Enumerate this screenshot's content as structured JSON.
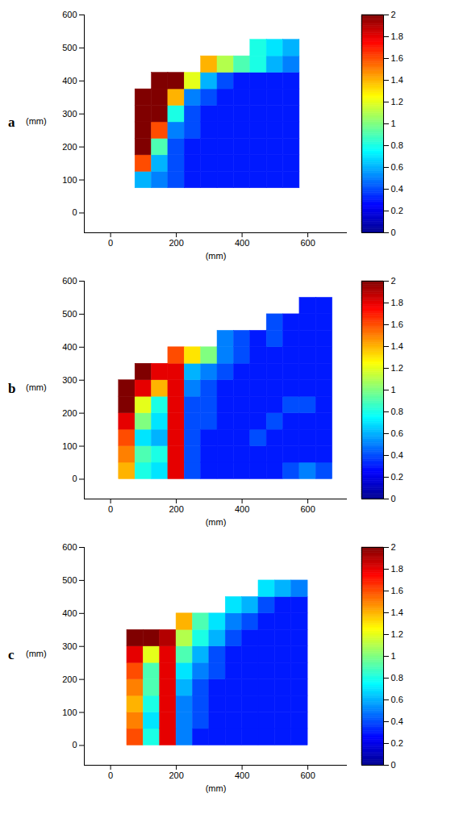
{
  "chart_data": [
    {
      "type": "heatmap",
      "panel_label": "a",
      "x_label": "(mm)",
      "y_label": "(mm)",
      "xlim": [
        -80,
        720
      ],
      "ylim": [
        -60,
        600
      ],
      "xticks": [
        0,
        200,
        400,
        600
      ],
      "yticks": [
        0,
        100,
        200,
        300,
        400,
        500,
        600
      ],
      "x_edges": [
        75,
        125,
        175,
        225,
        275,
        325,
        375,
        425,
        475,
        525,
        575
      ],
      "y_edges": [
        75,
        125,
        175,
        225,
        275,
        325,
        375,
        425,
        475,
        525
      ],
      "values": [
        [
          0.6,
          0.5,
          0.4,
          0.3,
          0.3,
          0.3,
          0.3,
          0.3,
          0.3,
          0.3
        ],
        [
          1.6,
          0.6,
          0.4,
          0.3,
          0.3,
          0.3,
          0.3,
          0.3,
          0.3,
          0.3
        ],
        [
          2,
          0.9,
          0.4,
          0.3,
          0.3,
          0.3,
          0.3,
          0.3,
          0.3,
          0.3
        ],
        [
          2,
          1.6,
          0.5,
          0.4,
          0.3,
          0.3,
          0.3,
          0.3,
          0.3,
          0.3
        ],
        [
          2,
          2,
          0.8,
          0.4,
          0.3,
          0.3,
          0.3,
          0.3,
          0.3,
          0.3
        ],
        [
          2,
          2,
          1.4,
          0.5,
          0.4,
          0.3,
          0.3,
          0.3,
          0.3,
          0.3
        ],
        [
          null,
          2,
          2,
          1.2,
          0.6,
          0.4,
          0.3,
          0.3,
          0.3,
          0.3
        ],
        [
          null,
          null,
          null,
          null,
          1.4,
          1.1,
          0.9,
          0.8,
          0.6,
          0.5
        ],
        [
          null,
          null,
          null,
          null,
          null,
          null,
          null,
          0.8,
          0.7,
          0.6
        ]
      ],
      "color_range": [
        0,
        2
      ],
      "color_ticks": [
        0,
        0.2,
        0.4,
        0.6,
        0.8,
        1,
        1.2,
        1.4,
        1.6,
        1.8,
        2
      ]
    },
    {
      "type": "heatmap",
      "panel_label": "b",
      "x_label": "(mm)",
      "y_label": "(mm)",
      "xlim": [
        -80,
        720
      ],
      "ylim": [
        -60,
        600
      ],
      "xticks": [
        0,
        200,
        400,
        600
      ],
      "yticks": [
        0,
        100,
        200,
        300,
        400,
        500,
        600
      ],
      "x_edges": [
        25,
        75,
        125,
        175,
        225,
        275,
        325,
        375,
        425,
        475,
        525,
        575,
        625,
        675
      ],
      "y_edges": [
        0,
        50,
        100,
        150,
        200,
        250,
        300,
        350,
        400,
        450,
        500,
        550
      ],
      "values": [
        [
          1.4,
          0.8,
          0.7,
          1.8,
          0.4,
          0.3,
          0.3,
          0.3,
          0.3,
          0.3,
          0.4,
          0.5,
          0.4
        ],
        [
          1.5,
          0.9,
          0.8,
          1.8,
          0.4,
          0.3,
          0.3,
          0.3,
          0.3,
          0.3,
          0.3,
          0.3,
          0.3
        ],
        [
          1.6,
          0.7,
          0.6,
          1.8,
          0.4,
          0.3,
          0.3,
          0.3,
          0.4,
          0.3,
          0.3,
          0.3,
          0.3
        ],
        [
          1.8,
          1.0,
          0.7,
          1.8,
          0.4,
          0.4,
          0.3,
          0.3,
          0.3,
          0.4,
          0.3,
          0.3,
          0.3
        ],
        [
          2,
          1.2,
          0.8,
          1.8,
          0.4,
          0.4,
          0.3,
          0.3,
          0.3,
          0.3,
          0.4,
          0.4,
          0.3
        ],
        [
          2,
          1.8,
          1.4,
          1.8,
          0.5,
          0.4,
          0.3,
          0.3,
          0.3,
          0.3,
          0.3,
          0.3,
          0.3
        ],
        [
          null,
          2,
          1.8,
          1.8,
          0.6,
          0.5,
          0.4,
          0.3,
          0.3,
          0.3,
          0.3,
          0.3,
          0.3
        ],
        [
          null,
          null,
          null,
          1.6,
          1.3,
          1.0,
          0.5,
          0.4,
          0.3,
          0.3,
          0.3,
          0.3,
          0.3
        ],
        [
          null,
          null,
          null,
          null,
          null,
          null,
          0.5,
          0.4,
          0.3,
          0.4,
          0.3,
          0.3,
          0.3
        ],
        [
          null,
          null,
          null,
          null,
          null,
          null,
          null,
          null,
          null,
          0.4,
          0.3,
          0.3,
          0.3
        ],
        [
          null,
          null,
          null,
          null,
          null,
          null,
          null,
          null,
          null,
          null,
          null,
          0.3,
          0.3
        ]
      ],
      "color_range": [
        0,
        2
      ],
      "color_ticks": [
        0,
        0.2,
        0.4,
        0.6,
        0.8,
        1,
        1.2,
        1.4,
        1.6,
        1.8,
        2
      ]
    },
    {
      "type": "heatmap",
      "panel_label": "c",
      "x_label": "(mm)",
      "y_label": "(mm)",
      "xlim": [
        -80,
        720
      ],
      "ylim": [
        -60,
        600
      ],
      "xticks": [
        0,
        200,
        400,
        600
      ],
      "yticks": [
        0,
        100,
        200,
        300,
        400,
        500,
        600
      ],
      "x_edges": [
        50,
        100,
        150,
        200,
        250,
        300,
        350,
        400,
        450,
        500,
        550,
        600
      ],
      "y_edges": [
        0,
        50,
        100,
        150,
        200,
        250,
        300,
        350,
        400,
        450,
        500
      ],
      "values": [
        [
          1.6,
          0.8,
          1.8,
          0.5,
          0.3,
          0.3,
          0.3,
          0.3,
          0.3,
          0.3,
          0.3
        ],
        [
          1.5,
          0.7,
          1.8,
          0.5,
          0.4,
          0.3,
          0.3,
          0.3,
          0.3,
          0.3,
          0.3
        ],
        [
          1.4,
          0.8,
          1.8,
          0.5,
          0.4,
          0.3,
          0.3,
          0.3,
          0.3,
          0.3,
          0.3
        ],
        [
          1.5,
          0.9,
          1.8,
          0.6,
          0.4,
          0.3,
          0.3,
          0.3,
          0.3,
          0.3,
          0.3
        ],
        [
          1.6,
          0.9,
          1.8,
          0.7,
          0.5,
          0.4,
          0.3,
          0.3,
          0.3,
          0.3,
          0.3
        ],
        [
          1.8,
          1.2,
          1.8,
          0.9,
          0.6,
          0.4,
          0.3,
          0.3,
          0.3,
          0.3,
          0.3
        ],
        [
          2,
          2,
          1.9,
          1.1,
          0.8,
          0.6,
          0.4,
          0.3,
          0.3,
          0.3,
          0.3
        ],
        [
          null,
          null,
          null,
          1.4,
          0.9,
          0.7,
          0.5,
          0.4,
          0.3,
          0.3,
          0.3
        ],
        [
          null,
          null,
          null,
          null,
          null,
          null,
          0.7,
          0.6,
          0.4,
          0.3,
          0.3
        ],
        [
          null,
          null,
          null,
          null,
          null,
          null,
          null,
          null,
          0.7,
          0.6,
          0.5
        ]
      ],
      "color_range": [
        0,
        2
      ],
      "color_ticks": [
        0,
        0.2,
        0.4,
        0.6,
        0.8,
        1,
        1.2,
        1.4,
        1.6,
        1.8,
        2
      ]
    }
  ]
}
